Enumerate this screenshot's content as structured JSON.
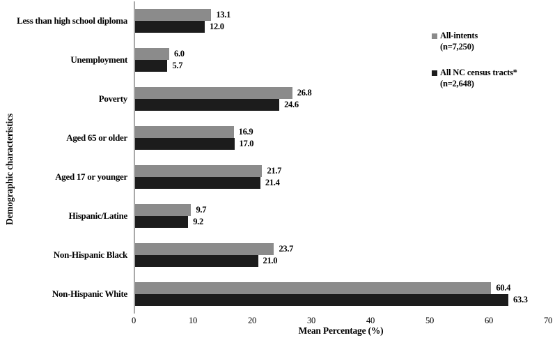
{
  "figure": {
    "x_axis_label": "Mean Percentage (%)",
    "y_axis_label": "Demographic characteristics"
  },
  "legend": {
    "items": [
      {
        "label": "All-intents",
        "sub": "(n=7,250)",
        "color": "#8b8b8b"
      },
      {
        "label": "All NC census tracts*",
        "sub": "(n=2,648)",
        "color": "#1c1c1c"
      }
    ]
  },
  "chart_data": {
    "type": "bar",
    "orientation": "horizontal",
    "title": "",
    "xlabel": "Mean Percentage (%)",
    "ylabel": "Demographic characteristics",
    "xlim": [
      0,
      70
    ],
    "x_ticks": [
      0,
      10,
      20,
      30,
      40,
      50,
      60,
      70
    ],
    "grid": false,
    "legend_position": "inside-top-right",
    "categories": [
      "Less than high school diploma",
      "Unemployment",
      "Poverty",
      "Aged 65 or older",
      "Aged 17 or younger",
      "Hispanic/Latine",
      "Non-Hispanic Black",
      "Non-Hispanic White"
    ],
    "series": [
      {
        "name": "All-intents (n=7,250)",
        "color": "#8b8b8b",
        "values": [
          13.1,
          6.0,
          26.8,
          16.9,
          21.7,
          9.7,
          23.7,
          60.4
        ],
        "labels": [
          "13.1",
          "6.0",
          "26.8",
          "16.9",
          "21.7",
          "9.7",
          "23.7",
          "60.4"
        ]
      },
      {
        "name": "All NC census tracts* (n=2,648)",
        "color": "#1c1c1c",
        "values": [
          12.0,
          5.7,
          24.6,
          17.0,
          21.4,
          9.2,
          21.0,
          63.3
        ],
        "labels": [
          "12.0",
          "5.7",
          "24.6",
          "17.0",
          "21.4",
          "9.2",
          "21.0",
          "63.3"
        ]
      }
    ]
  }
}
